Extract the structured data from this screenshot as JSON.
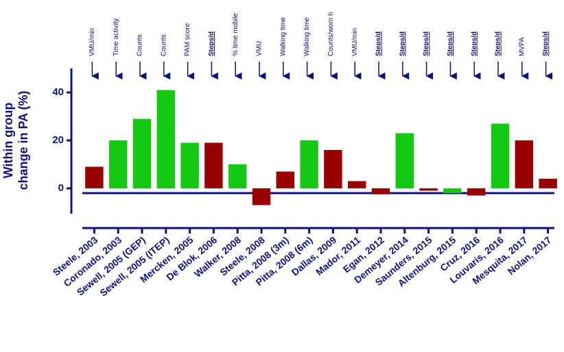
{
  "chart_data": {
    "type": "bar",
    "ylabel": [
      "Within group",
      "change in PA (%)"
    ],
    "categories": [
      "Steele, 2003",
      "Coronado, 2003",
      "Sewell, 2005 (GEP)",
      "Sewell, 2005 (ITEP)",
      "Mercken, 2005",
      "De Blok, 2006",
      "Walker, 2008",
      "Steele, 2008",
      "Pitta, 2008 (3m)",
      "Pitta, 2008 (6m)",
      "Dallas, 2009",
      "Mador, 2011",
      "Egan, 2012",
      "Demeyer, 2014",
      "Saunders, 2015",
      "Altenburg, 2015",
      "Cruz, 2016",
      "Louvaris, 2016",
      "Mesquita, 2017",
      "Nolan, 2017"
    ],
    "values": [
      9,
      20,
      29,
      41,
      19,
      19,
      10,
      -7,
      7,
      20,
      16,
      3,
      -2.5,
      23,
      -1,
      -2,
      -3,
      27,
      20,
      4
    ],
    "colors": [
      "#9b0000",
      "#14c814",
      "#14c814",
      "#14c814",
      "#14c814",
      "#9b0000",
      "#14c814",
      "#9b0000",
      "#9b0000",
      "#14c814",
      "#9b0000",
      "#9b0000",
      "#9b0000",
      "#14c814",
      "#9b0000",
      "#14c814",
      "#9b0000",
      "#14c814",
      "#9b0000",
      "#9b0000"
    ],
    "measures": [
      {
        "label": "VMU/min",
        "bold": false
      },
      {
        "label": "Time activity",
        "bold": false
      },
      {
        "label": "Counts",
        "bold": false
      },
      {
        "label": "Counts",
        "bold": false
      },
      {
        "label": "PAM score",
        "bold": false
      },
      {
        "label": "Steps/d",
        "bold": true
      },
      {
        "label": "% time mobile",
        "bold": false
      },
      {
        "label": "VMU",
        "bold": false
      },
      {
        "label": "Walking time",
        "bold": false
      },
      {
        "label": "Walking time",
        "bold": false
      },
      {
        "label": "Counts/worn h",
        "bold": false
      },
      {
        "label": "VMU/min",
        "bold": false
      },
      {
        "label": "Steps/d",
        "bold": true
      },
      {
        "label": "Steps/d",
        "bold": true
      },
      {
        "label": "Steps/d",
        "bold": true
      },
      {
        "label": "Steps/d",
        "bold": true
      },
      {
        "label": "Steps/d",
        "bold": true
      },
      {
        "label": "Steps/d",
        "bold": true
      },
      {
        "label": "MVPA",
        "bold": false
      },
      {
        "label": "Steps/d",
        "bold": true
      }
    ],
    "ylim": [
      -10,
      50
    ],
    "yticks": [
      0,
      20,
      40
    ]
  }
}
